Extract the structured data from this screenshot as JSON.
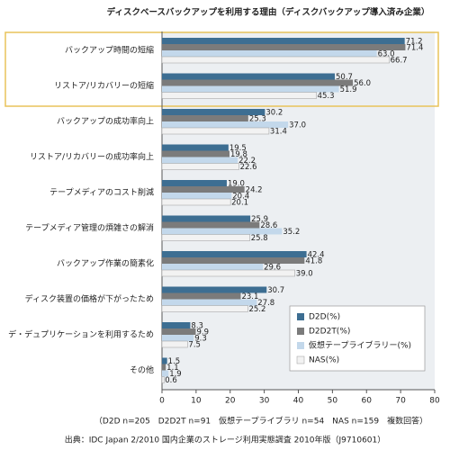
{
  "chart_data": {
    "type": "bar",
    "orientation": "horizontal",
    "title": "ディスクベースバックアップを利用する理由（ディスクバックアップ導入済み企業）",
    "categories": [
      "バックアップ時間の短縮",
      "リストア/リカバリーの短縮",
      "バックアップの成功率向上",
      "リストア/リカバリーの成功率向上",
      "テープメディアのコスト削減",
      "テープメディア管理の煩雑さの解消",
      "バックアップ作業の簡素化",
      "ディスク装置の価格が下がったため",
      "デ・デュプリケーションを利用するため",
      "その他"
    ],
    "series": [
      {
        "name": "D2D(%)",
        "color": "#3d6e92",
        "values": [
          71.2,
          50.7,
          30.2,
          19.5,
          19,
          25.9,
          42.4,
          30.7,
          8.3,
          1.5
        ],
        "value_labels": [
          "71.2",
          "50.7",
          "30.2",
          "19.5",
          "19.0",
          "25.9",
          "42.4",
          "30.7",
          "8.3",
          "1.5"
        ]
      },
      {
        "name": "D2D2T(%)",
        "color": "#7b7b7b",
        "values": [
          71.4,
          56,
          25.3,
          19.8,
          24.2,
          28.6,
          41.8,
          23.1,
          9.9,
          1.1
        ],
        "value_labels": [
          "71.4",
          "56.0",
          "25.3",
          "19.8",
          "24.2",
          "28.6",
          "41.8",
          "23.1",
          "9.9",
          "1.1"
        ]
      },
      {
        "name": "仮想テープライブラリー(%)",
        "color": "#c3d8eb",
        "values": [
          63,
          51.9,
          37,
          22.2,
          20.4,
          35.2,
          29.6,
          27.8,
          9.3,
          1.9
        ],
        "value_labels": [
          "63.0",
          "51.9",
          "37.0",
          "22.2",
          "20.4",
          "35.2",
          "29.6",
          "27.8",
          "9.3",
          "1.9"
        ]
      },
      {
        "name": "NAS(%)",
        "color": "#f2f2f2",
        "values": [
          66.7,
          45.3,
          31.4,
          22.6,
          20.1,
          25.8,
          39,
          25.2,
          7.5,
          0.6
        ],
        "value_labels": [
          "66.7",
          "45.3",
          "31.4",
          "22.6",
          "20.1",
          "25.8",
          "39.0",
          "25.2",
          "7.5",
          "0.6"
        ]
      }
    ],
    "xlim": [
      0,
      80
    ],
    "xticks": [
      0,
      10,
      20,
      30,
      40,
      50,
      60,
      70,
      80
    ],
    "legend": "lower right",
    "footnote": "（D2D n=205　D2D2T n=91　仮想テープライブラリ n=54　NAS n=159　複数回答）",
    "source": "出典：IDC Japan 2/2010 国内企業のストレージ利用実態調査 2010年版（J9710601）"
  }
}
